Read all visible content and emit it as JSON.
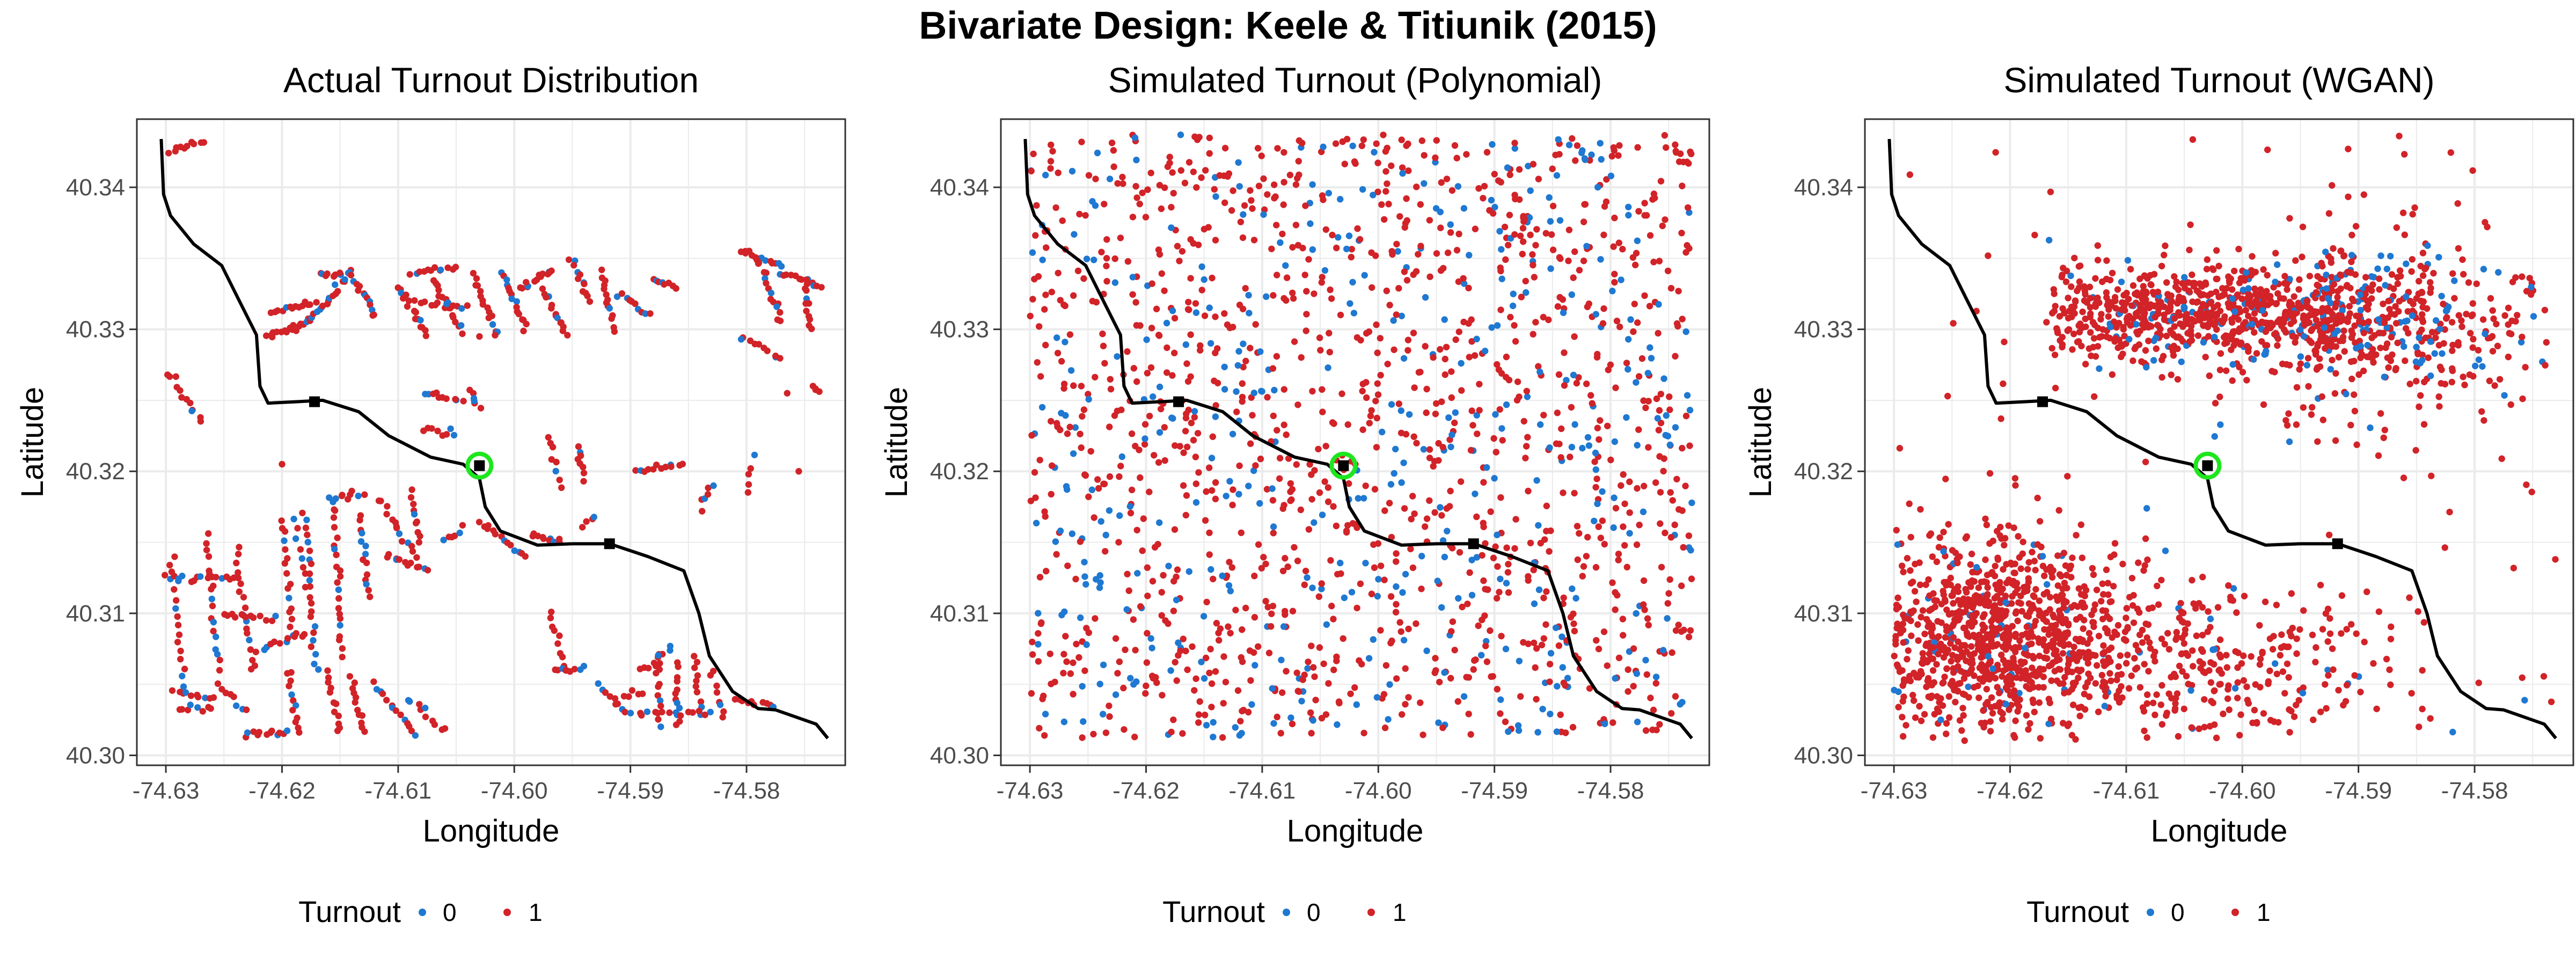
{
  "figure": {
    "title": "Bivariate Design: Keele & Titiunik (2015)"
  },
  "colors": {
    "zero": "#1f78d1",
    "one": "#d12328",
    "boundary": "#000000",
    "highlight": "#1ee61e",
    "grid": "#ebebeb",
    "panel_border": "#333333"
  },
  "chart_data": [
    {
      "type": "scatter",
      "id": "actual",
      "title": "Actual Turnout Distribution",
      "xlabel": "Longitude",
      "ylabel": "Latitude",
      "xlim": [
        -74.6325,
        -74.5715
      ],
      "ylim": [
        40.2993,
        40.3448
      ],
      "xticks": [
        -74.63,
        -74.62,
        -74.61,
        -74.6,
        -74.59,
        -74.58
      ],
      "xtick_labels": [
        "-74.63",
        "-74.62",
        "-74.61",
        "-74.60",
        "-74.59",
        "-74.58"
      ],
      "yticks": [
        40.3,
        40.31,
        40.32,
        40.33,
        40.34
      ],
      "ytick_labels": [
        "40.30",
        "40.31",
        "40.32",
        "40.33",
        "40.34"
      ],
      "grid": true,
      "legend": {
        "title": "Turnout",
        "entries": [
          "0",
          "1"
        ],
        "placement": "bottom"
      },
      "point_distribution": "street-segment clusters"
    },
    {
      "type": "scatter",
      "id": "poly",
      "title": "Simulated Turnout (Polynomial)",
      "xlabel": "Longitude",
      "ylabel": "Latitude",
      "xlim": [
        -74.6325,
        -74.5715
      ],
      "ylim": [
        40.2993,
        40.3448
      ],
      "xticks": [
        -74.63,
        -74.62,
        -74.61,
        -74.6,
        -74.59,
        -74.58
      ],
      "xtick_labels": [
        "-74.63",
        "-74.62",
        "-74.61",
        "-74.60",
        "-74.59",
        "-74.58"
      ],
      "yticks": [
        40.3,
        40.31,
        40.32,
        40.33,
        40.34
      ],
      "ytick_labels": [
        "40.30",
        "40.31",
        "40.32",
        "40.33",
        "40.34"
      ],
      "grid": true,
      "legend": {
        "title": "Turnout",
        "entries": [
          "0",
          "1"
        ],
        "placement": "bottom"
      },
      "point_distribution": "uniform"
    },
    {
      "type": "scatter",
      "id": "wgan",
      "title": "Simulated Turnout (WGAN)",
      "xlabel": "Longitude",
      "ylabel": "Latitude",
      "xlim": [
        -74.6325,
        -74.5715
      ],
      "ylim": [
        40.2993,
        40.3448
      ],
      "xticks": [
        -74.63,
        -74.62,
        -74.61,
        -74.6,
        -74.59,
        -74.58
      ],
      "xtick_labels": [
        "-74.63",
        "-74.62",
        "-74.61",
        "-74.60",
        "-74.59",
        "-74.58"
      ],
      "yticks": [
        40.3,
        40.31,
        40.32,
        40.33,
        40.34
      ],
      "ytick_labels": [
        "40.30",
        "40.31",
        "40.32",
        "40.33",
        "40.34"
      ],
      "grid": true,
      "legend": {
        "title": "Turnout",
        "entries": [
          "0",
          "1"
        ],
        "placement": "bottom"
      },
      "point_distribution": "two dense clusters, north and south of boundary"
    }
  ],
  "boundary": {
    "lon": [
      -74.6304,
      -74.6302,
      -74.6296,
      -74.6276,
      -74.6252,
      -74.6238,
      -74.6222,
      -74.6219,
      -74.6212,
      -74.6188,
      -74.6165,
      -74.6134,
      -74.6108,
      -74.6072,
      -74.6044,
      -74.603,
      -74.6025,
      -74.6012,
      -74.598,
      -74.595,
      -74.5918,
      -74.5885,
      -74.5854,
      -74.5841,
      -74.5832,
      -74.5812,
      -74.579,
      -74.5775,
      -74.574,
      -74.573
    ],
    "lat": [
      40.3434,
      40.3395,
      40.338,
      40.336,
      40.3345,
      40.3322,
      40.3296,
      40.326,
      40.3248,
      40.3249,
      40.325,
      40.3242,
      40.3225,
      40.321,
      40.3205,
      40.3195,
      40.3175,
      40.3158,
      40.3148,
      40.3149,
      40.3149,
      40.314,
      40.313,
      40.31,
      40.307,
      40.3045,
      40.3033,
      40.3032,
      40.3022,
      40.3012
    ]
  },
  "boundary_markers": [
    {
      "lon": -74.6172,
      "lat": 40.3249
    },
    {
      "lon": -74.603,
      "lat": 40.3204
    },
    {
      "lon": -74.5918,
      "lat": 40.3149
    }
  ],
  "highlight_point": {
    "lon": -74.603,
    "lat": 40.3204
  }
}
